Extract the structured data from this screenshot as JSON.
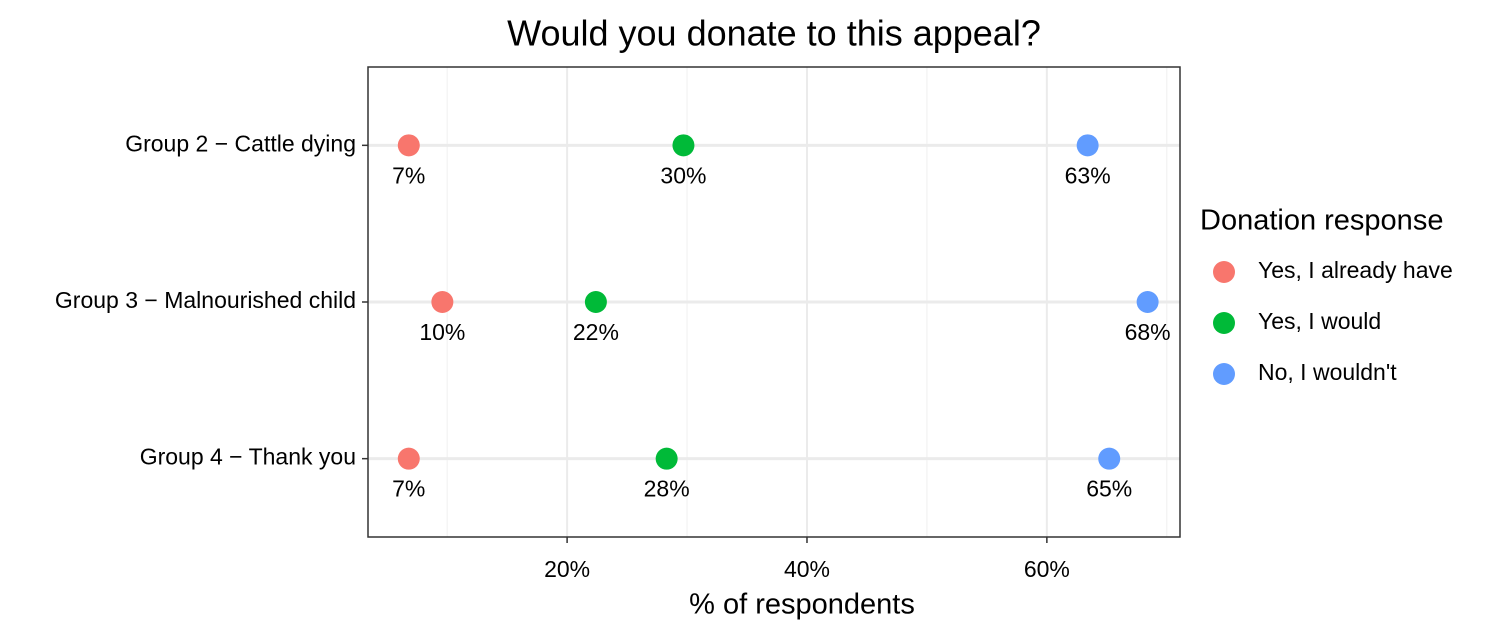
{
  "chart_data": {
    "type": "dot",
    "orientation": "horizontal",
    "title": "Would you donate to this appeal?",
    "x_label": "% of respondents",
    "legend_title": "Donation response",
    "legend_position": "right",
    "categories": [
      "Group 2 − Cattle dying",
      "Group 3 − Malnourished child",
      "Group 4 − Thank you"
    ],
    "series": [
      {
        "name": "Yes, I already have",
        "color": "#f8766d",
        "values": [
          6.8,
          9.6,
          6.8
        ],
        "value_labels": [
          "7%",
          "10%",
          "7%"
        ]
      },
      {
        "name": "Yes, I would",
        "color": "#00ba38",
        "values": [
          29.7,
          22.4,
          28.3
        ],
        "value_labels": [
          "30%",
          "22%",
          "28%"
        ]
      },
      {
        "name": "No, I wouldn't",
        "color": "#619cff",
        "values": [
          63.4,
          68.4,
          65.2
        ],
        "value_labels": [
          "63%",
          "68%",
          "65%"
        ]
      }
    ],
    "xlim": [
      3.4,
      71.1
    ],
    "xticks": [
      {
        "value": 20,
        "label": "20%"
      },
      {
        "value": 40,
        "label": "40%"
      },
      {
        "value": 60,
        "label": "60%"
      }
    ],
    "minor_xticks": [
      10,
      30,
      50,
      70
    ],
    "grid": true
  }
}
